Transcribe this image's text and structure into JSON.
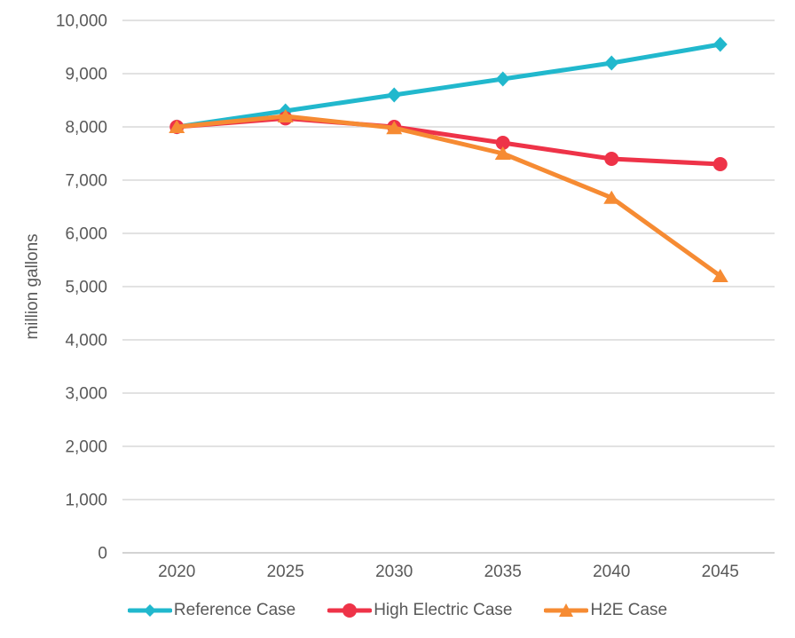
{
  "chart_data": {
    "type": "line",
    "title": "",
    "xlabel": "",
    "ylabel": "million gallons",
    "categories": [
      "2020",
      "2025",
      "2030",
      "2035",
      "2040",
      "2045"
    ],
    "ylim": [
      0,
      10000
    ],
    "ytick_step": 1000,
    "ytick_labels": [
      "0",
      "1,000",
      "2,000",
      "3,000",
      "4,000",
      "5,000",
      "6,000",
      "7,000",
      "8,000",
      "9,000",
      "10,000"
    ],
    "grid": true,
    "legend_position": "bottom",
    "series": [
      {
        "name": "Reference Case",
        "marker": "diamond",
        "color": "#21B8CD",
        "values": [
          8000,
          8300,
          8600,
          8900,
          9200,
          9550
        ]
      },
      {
        "name": "High Electric Case",
        "marker": "circle",
        "color": "#EE3348",
        "values": [
          8000,
          8160,
          8000,
          7700,
          7400,
          7300
        ]
      },
      {
        "name": "H2E Case",
        "marker": "triangle",
        "color": "#F68B33",
        "values": [
          8000,
          8200,
          7980,
          7500,
          6670,
          5200
        ]
      }
    ]
  },
  "colors": {
    "axis_text": "#595959",
    "gridline": "#D9D9D9",
    "baseline": "#D3D3D3",
    "background": "#FFFFFF"
  }
}
